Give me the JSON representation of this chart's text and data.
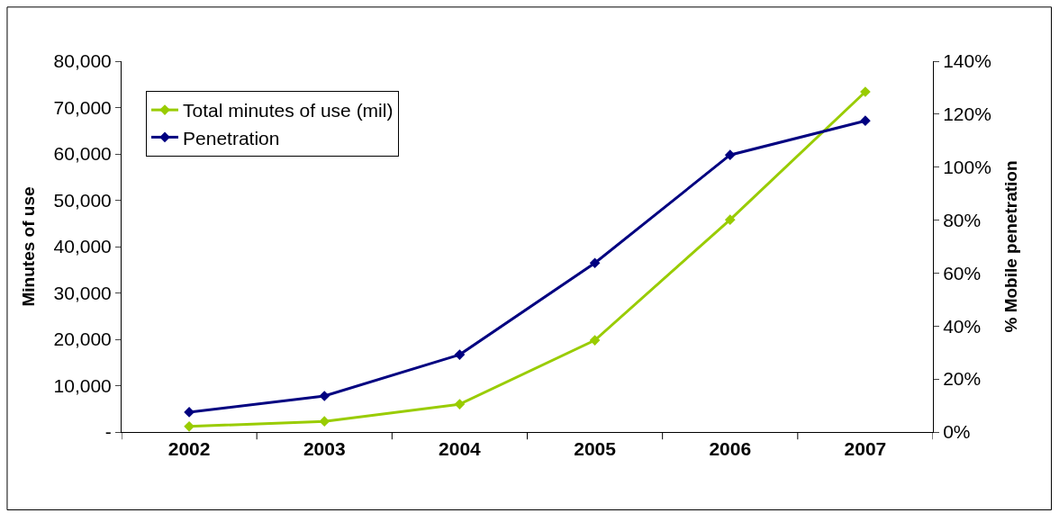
{
  "chart_data": {
    "type": "line",
    "categories": [
      "2002",
      "2003",
      "2004",
      "2005",
      "2006",
      "2007"
    ],
    "series": [
      {
        "name": "Total minutes of use (mil)",
        "color": "#99cc00",
        "values": [
          1200,
          2300,
          6000,
          19800,
          45800,
          73400
        ]
      },
      {
        "name": "Penetration",
        "color": "#000080",
        "axis": "y2",
        "values": [
          7.5,
          13.6,
          29.2,
          63.8,
          104.6,
          117.5
        ]
      }
    ],
    "ylabel": "Minutes of use",
    "y2label": "% Mobile penetration",
    "ylim": [
      0,
      80000
    ],
    "yticks": [
      {
        "value": 0,
        "label": "-"
      },
      {
        "value": 10000,
        "label": "10,000"
      },
      {
        "value": 20000,
        "label": "20,000"
      },
      {
        "value": 30000,
        "label": "30,000"
      },
      {
        "value": 40000,
        "label": "40,000"
      },
      {
        "value": 50000,
        "label": "50,000"
      },
      {
        "value": 60000,
        "label": "60,000"
      },
      {
        "value": 70000,
        "label": "70,000"
      },
      {
        "value": 80000,
        "label": "80,000"
      }
    ],
    "y2lim": [
      0,
      140
    ],
    "y2ticks": [
      {
        "value": 0,
        "label": "0%"
      },
      {
        "value": 20,
        "label": "20%"
      },
      {
        "value": 40,
        "label": "40%"
      },
      {
        "value": 60,
        "label": "60%"
      },
      {
        "value": 80,
        "label": "80%"
      },
      {
        "value": 100,
        "label": "100%"
      },
      {
        "value": 120,
        "label": "120%"
      },
      {
        "value": 140,
        "label": "140%"
      }
    ],
    "legend": "top left",
    "marker": "diamond",
    "line_style": "solid"
  }
}
